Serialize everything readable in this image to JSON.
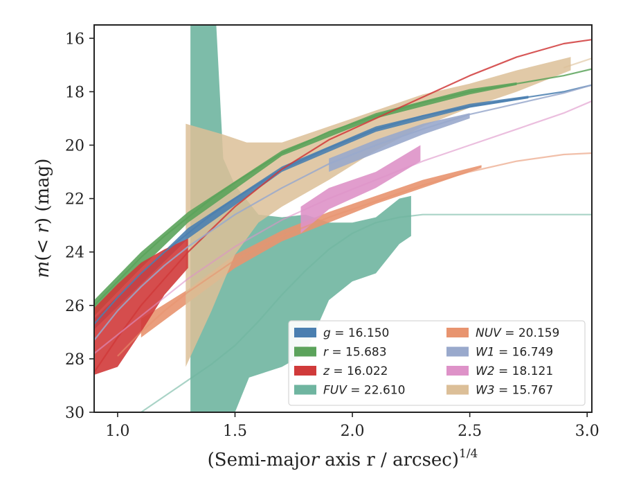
{
  "chart_data": {
    "type": "area",
    "xlabel": "(Semi-major axis r / arcsec)",
    "xlabel_italic_var": "r",
    "xlabel_exponent": "1/4",
    "ylabel": "m(< r) (mag)",
    "xlim": [
      0.9,
      3.02
    ],
    "ylim": [
      30.0,
      15.5
    ],
    "y_inverted": true,
    "xticks": [
      1.0,
      1.5,
      2.0,
      2.5,
      3.0
    ],
    "xtick_labels": [
      "1.0",
      "1.5",
      "2.0",
      "2.5",
      "3.0"
    ],
    "yticks": [
      16,
      18,
      20,
      22,
      24,
      26,
      28,
      30
    ],
    "ytick_labels": [
      "16",
      "18",
      "20",
      "22",
      "24",
      "26",
      "28",
      "30"
    ],
    "grid": false,
    "legend": {
      "placement": "lower-right",
      "columns": 2
    },
    "series": [
      {
        "key": "FUV",
        "label": "FUV = 22.610",
        "label_var": "FUV",
        "label_value": "= 22.610",
        "color": "#6fb5a0",
        "curve": [
          [
            1.1,
            30.0
          ],
          [
            1.2,
            29.4
          ],
          [
            1.3,
            28.8
          ],
          [
            1.4,
            28.2
          ],
          [
            1.5,
            27.5
          ],
          [
            1.6,
            26.6
          ],
          [
            1.7,
            25.6
          ],
          [
            1.8,
            24.7
          ],
          [
            1.9,
            23.9
          ],
          [
            2.0,
            23.3
          ],
          [
            2.1,
            22.9
          ],
          [
            2.2,
            22.7
          ],
          [
            2.3,
            22.6
          ],
          [
            2.5,
            22.6
          ],
          [
            2.8,
            22.6
          ],
          [
            3.02,
            22.6
          ]
        ],
        "band_upper": [
          [
            1.31,
            15.5
          ],
          [
            1.42,
            15.5
          ],
          [
            1.45,
            20.5
          ],
          [
            1.5,
            21.5
          ],
          [
            1.6,
            22.6
          ],
          [
            1.7,
            22.7
          ],
          [
            1.8,
            22.6
          ],
          [
            1.9,
            22.9
          ],
          [
            2.0,
            22.9
          ],
          [
            2.1,
            22.7
          ],
          [
            2.2,
            22.0
          ],
          [
            2.25,
            21.9
          ],
          [
            2.25,
            23.4
          ]
        ],
        "band_lower": [
          [
            1.31,
            30.0
          ],
          [
            1.5,
            30.0
          ],
          [
            1.56,
            28.7
          ],
          [
            1.7,
            28.3
          ],
          [
            1.8,
            27.8
          ],
          [
            1.9,
            25.8
          ],
          [
            2.0,
            25.1
          ],
          [
            2.1,
            24.8
          ],
          [
            2.2,
            23.7
          ],
          [
            2.25,
            23.4
          ]
        ]
      },
      {
        "key": "NUV",
        "label": "NUV = 20.159",
        "label_var": "NUV",
        "label_value": "= 20.159",
        "color": "#e8946f",
        "curve": [
          [
            1.0,
            27.9
          ],
          [
            1.1,
            27.0
          ],
          [
            1.2,
            26.2
          ],
          [
            1.3,
            25.5
          ],
          [
            1.4,
            24.9
          ],
          [
            1.5,
            24.3
          ],
          [
            1.7,
            23.4
          ],
          [
            1.9,
            22.7
          ],
          [
            2.1,
            22.1
          ],
          [
            2.3,
            21.5
          ],
          [
            2.5,
            21.0
          ],
          [
            2.7,
            20.6
          ],
          [
            2.9,
            20.35
          ],
          [
            3.02,
            20.3
          ]
        ],
        "band_upper": [
          [
            1.1,
            26.5
          ],
          [
            1.3,
            25.4
          ],
          [
            1.5,
            24.1
          ],
          [
            1.7,
            23.2
          ],
          [
            1.9,
            22.5
          ],
          [
            2.1,
            21.9
          ],
          [
            2.3,
            21.3
          ],
          [
            2.55,
            20.75
          ]
        ],
        "band_lower": [
          [
            1.1,
            27.2
          ],
          [
            1.3,
            25.9
          ],
          [
            1.5,
            24.6
          ],
          [
            1.7,
            23.6
          ],
          [
            1.9,
            22.9
          ],
          [
            2.1,
            22.2
          ],
          [
            2.3,
            21.6
          ],
          [
            2.55,
            20.85
          ]
        ]
      },
      {
        "key": "W3",
        "label": "W3 = 15.767",
        "label_var": "W3",
        "label_value": "= 15.767",
        "color": "#dcbf98",
        "curve": [
          [
            2.9,
            17.1
          ],
          [
            3.02,
            16.75
          ]
        ],
        "band_upper": [
          [
            1.29,
            19.2
          ],
          [
            1.45,
            19.6
          ],
          [
            1.55,
            19.9
          ],
          [
            1.7,
            19.9
          ],
          [
            1.9,
            19.3
          ],
          [
            2.1,
            18.7
          ],
          [
            2.3,
            18.1
          ],
          [
            2.5,
            17.7
          ],
          [
            2.7,
            17.2
          ],
          [
            2.93,
            16.7
          ]
        ],
        "band_lower": [
          [
            1.29,
            28.3
          ],
          [
            1.4,
            26.2
          ],
          [
            1.5,
            24.1
          ],
          [
            1.6,
            22.9
          ],
          [
            1.7,
            22.3
          ],
          [
            1.9,
            21.3
          ],
          [
            2.1,
            20.2
          ],
          [
            2.3,
            19.3
          ],
          [
            2.5,
            18.6
          ],
          [
            2.7,
            18.0
          ],
          [
            2.93,
            17.2
          ]
        ]
      },
      {
        "key": "g",
        "label": "g = 16.150",
        "label_var": "g",
        "label_value": "= 16.150",
        "color": "#4a7fb0",
        "curve": [
          [
            0.9,
            26.7
          ],
          [
            1.0,
            25.7
          ],
          [
            1.1,
            24.8
          ],
          [
            1.2,
            24.0
          ],
          [
            1.3,
            23.3
          ],
          [
            1.4,
            22.6
          ],
          [
            1.5,
            22.0
          ],
          [
            1.7,
            20.9
          ],
          [
            1.9,
            20.1
          ],
          [
            2.1,
            19.4
          ],
          [
            2.3,
            18.9
          ],
          [
            2.5,
            18.55
          ],
          [
            2.75,
            18.2
          ],
          [
            2.9,
            18.0
          ],
          [
            3.02,
            17.75
          ]
        ],
        "band_upper": [
          [
            0.9,
            26.5
          ],
          [
            1.3,
            23.1
          ],
          [
            1.7,
            20.8
          ],
          [
            2.1,
            19.3
          ],
          [
            2.5,
            18.45
          ],
          [
            2.75,
            18.15
          ]
        ],
        "band_lower": [
          [
            0.9,
            26.9
          ],
          [
            1.3,
            23.5
          ],
          [
            1.7,
            21.0
          ],
          [
            2.1,
            19.5
          ],
          [
            2.5,
            18.6
          ],
          [
            2.75,
            18.25
          ]
        ]
      },
      {
        "key": "r",
        "label": "r = 15.683",
        "label_var": "r",
        "label_value": "= 15.683",
        "color": "#5ba35b",
        "curve": [
          [
            0.9,
            26.0
          ],
          [
            1.0,
            25.1
          ],
          [
            1.1,
            24.2
          ],
          [
            1.2,
            23.4
          ],
          [
            1.3,
            22.7
          ],
          [
            1.4,
            22.0
          ],
          [
            1.5,
            21.4
          ],
          [
            1.7,
            20.3
          ],
          [
            1.9,
            19.5
          ],
          [
            2.1,
            18.9
          ],
          [
            2.3,
            18.4
          ],
          [
            2.5,
            18.0
          ],
          [
            2.7,
            17.7
          ],
          [
            2.9,
            17.4
          ],
          [
            3.02,
            17.15
          ]
        ],
        "band_upper": [
          [
            0.9,
            25.8
          ],
          [
            1.1,
            24.0
          ],
          [
            1.3,
            22.5
          ],
          [
            1.7,
            20.2
          ],
          [
            2.1,
            18.8
          ],
          [
            2.5,
            17.9
          ],
          [
            2.7,
            17.65
          ]
        ],
        "band_lower": [
          [
            0.9,
            26.4
          ],
          [
            1.1,
            24.6
          ],
          [
            1.3,
            22.9
          ],
          [
            1.7,
            20.4
          ],
          [
            2.1,
            19.0
          ],
          [
            2.5,
            18.1
          ],
          [
            2.7,
            17.75
          ]
        ]
      },
      {
        "key": "z",
        "label": "z = 16.022",
        "label_var": "z",
        "label_value": "= 16.022",
        "color": "#d03a3a",
        "curve": [
          [
            0.9,
            28.5
          ],
          [
            1.0,
            27.2
          ],
          [
            1.1,
            26.0
          ],
          [
            1.2,
            25.0
          ],
          [
            1.3,
            24.0
          ],
          [
            1.5,
            22.3
          ],
          [
            1.7,
            20.9
          ],
          [
            1.9,
            19.8
          ],
          [
            2.1,
            19.0
          ],
          [
            2.3,
            18.2
          ],
          [
            2.5,
            17.4
          ],
          [
            2.7,
            16.7
          ],
          [
            2.9,
            16.2
          ],
          [
            3.02,
            16.05
          ]
        ],
        "band_upper": [
          [
            0.9,
            26.1
          ],
          [
            1.0,
            25.2
          ],
          [
            1.1,
            24.4
          ],
          [
            1.2,
            23.9
          ],
          [
            1.3,
            23.5
          ]
        ],
        "band_lower": [
          [
            0.9,
            28.6
          ],
          [
            1.0,
            28.3
          ],
          [
            1.1,
            27.0
          ],
          [
            1.2,
            25.6
          ],
          [
            1.3,
            24.6
          ]
        ]
      },
      {
        "key": "W1",
        "label": "W1 = 16.749",
        "label_var": "W1",
        "label_value": "= 16.749",
        "color": "#99a9cc",
        "curve": [
          [
            0.9,
            27.3
          ],
          [
            1.0,
            26.2
          ],
          [
            1.1,
            25.3
          ],
          [
            1.2,
            24.5
          ],
          [
            1.3,
            23.8
          ],
          [
            1.5,
            22.6
          ],
          [
            1.7,
            21.6
          ],
          [
            1.9,
            20.7
          ],
          [
            2.1,
            20.0
          ],
          [
            2.3,
            19.4
          ],
          [
            2.5,
            18.85
          ],
          [
            2.7,
            18.45
          ],
          [
            2.9,
            18.05
          ],
          [
            3.02,
            17.75
          ]
        ],
        "band_upper": [
          [
            1.9,
            20.5
          ],
          [
            2.1,
            19.8
          ],
          [
            2.3,
            19.2
          ],
          [
            2.5,
            18.8
          ]
        ],
        "band_lower": [
          [
            1.9,
            21.0
          ],
          [
            2.1,
            20.3
          ],
          [
            2.3,
            19.6
          ],
          [
            2.5,
            19.0
          ]
        ]
      },
      {
        "key": "W2",
        "label": "W2 = 18.121",
        "label_var": "W2",
        "label_value": "= 18.121",
        "color": "#de92c8",
        "curve": [
          [
            0.9,
            27.8
          ],
          [
            1.0,
            27.1
          ],
          [
            1.1,
            26.4
          ],
          [
            1.2,
            25.7
          ],
          [
            1.3,
            25.0
          ],
          [
            1.5,
            23.8
          ],
          [
            1.7,
            22.8
          ],
          [
            1.9,
            22.0
          ],
          [
            2.1,
            21.3
          ],
          [
            2.3,
            20.6
          ],
          [
            2.5,
            20.0
          ],
          [
            2.7,
            19.4
          ],
          [
            2.9,
            18.8
          ],
          [
            3.02,
            18.35
          ]
        ],
        "band_upper": [
          [
            1.78,
            22.3
          ],
          [
            1.9,
            21.6
          ],
          [
            2.1,
            21.0
          ],
          [
            2.29,
            20.0
          ]
        ],
        "band_lower": [
          [
            1.78,
            23.3
          ],
          [
            1.9,
            22.4
          ],
          [
            2.1,
            21.6
          ],
          [
            2.29,
            20.6
          ]
        ]
      }
    ],
    "legend_order": [
      [
        "g",
        "NUV"
      ],
      [
        "r",
        "W1"
      ],
      [
        "z",
        "W2"
      ],
      [
        "FUV",
        "W3"
      ]
    ]
  }
}
